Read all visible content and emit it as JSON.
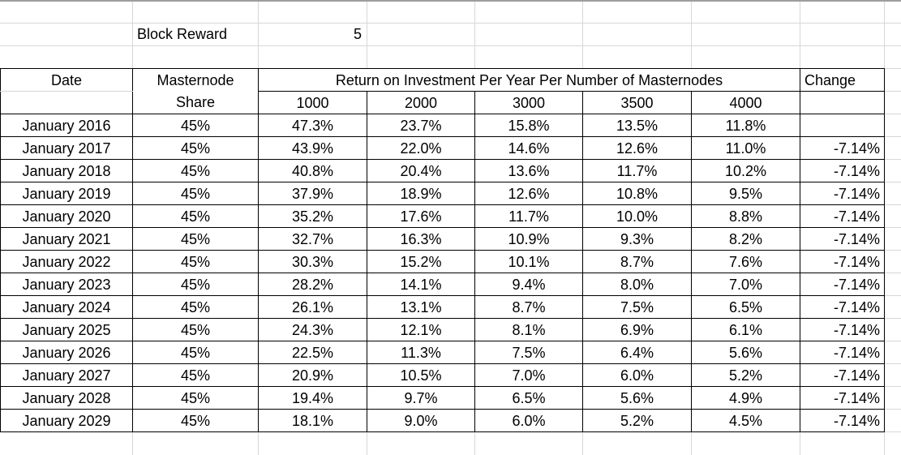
{
  "block_reward": {
    "label": "Block Reward",
    "value": "5"
  },
  "table": {
    "headers": {
      "date": "Date",
      "masternode": "Masternode",
      "masternode_sub": "Share",
      "roi_group": "Return on Investment Per Year Per Number of Masternodes",
      "node_counts": [
        "1000",
        "2000",
        "3000",
        "3500",
        "4000"
      ],
      "change": "Change"
    },
    "rows": [
      {
        "date": "January 2016",
        "share": "45%",
        "roi": [
          "47.3%",
          "23.7%",
          "15.8%",
          "13.5%",
          "11.8%"
        ],
        "change": ""
      },
      {
        "date": "January 2017",
        "share": "45%",
        "roi": [
          "43.9%",
          "22.0%",
          "14.6%",
          "12.6%",
          "11.0%"
        ],
        "change": "-7.14%"
      },
      {
        "date": "January 2018",
        "share": "45%",
        "roi": [
          "40.8%",
          "20.4%",
          "13.6%",
          "11.7%",
          "10.2%"
        ],
        "change": "-7.14%"
      },
      {
        "date": "January 2019",
        "share": "45%",
        "roi": [
          "37.9%",
          "18.9%",
          "12.6%",
          "10.8%",
          "9.5%"
        ],
        "change": "-7.14%"
      },
      {
        "date": "January 2020",
        "share": "45%",
        "roi": [
          "35.2%",
          "17.6%",
          "11.7%",
          "10.0%",
          "8.8%"
        ],
        "change": "-7.14%"
      },
      {
        "date": "January 2021",
        "share": "45%",
        "roi": [
          "32.7%",
          "16.3%",
          "10.9%",
          "9.3%",
          "8.2%"
        ],
        "change": "-7.14%"
      },
      {
        "date": "January 2022",
        "share": "45%",
        "roi": [
          "30.3%",
          "15.2%",
          "10.1%",
          "8.7%",
          "7.6%"
        ],
        "change": "-7.14%"
      },
      {
        "date": "January 2023",
        "share": "45%",
        "roi": [
          "28.2%",
          "14.1%",
          "9.4%",
          "8.0%",
          "7.0%"
        ],
        "change": "-7.14%"
      },
      {
        "date": "January 2024",
        "share": "45%",
        "roi": [
          "26.1%",
          "13.1%",
          "8.7%",
          "7.5%",
          "6.5%"
        ],
        "change": "-7.14%"
      },
      {
        "date": "January 2025",
        "share": "45%",
        "roi": [
          "24.3%",
          "12.1%",
          "8.1%",
          "6.9%",
          "6.1%"
        ],
        "change": "-7.14%"
      },
      {
        "date": "January 2026",
        "share": "45%",
        "roi": [
          "22.5%",
          "11.3%",
          "7.5%",
          "6.4%",
          "5.6%"
        ],
        "change": "-7.14%"
      },
      {
        "date": "January 2027",
        "share": "45%",
        "roi": [
          "20.9%",
          "10.5%",
          "7.0%",
          "6.0%",
          "5.2%"
        ],
        "change": "-7.14%"
      },
      {
        "date": "January 2028",
        "share": "45%",
        "roi": [
          "19.4%",
          "9.7%",
          "6.5%",
          "5.6%",
          "4.9%"
        ],
        "change": "-7.14%"
      },
      {
        "date": "January 2029",
        "share": "45%",
        "roi": [
          "18.1%",
          "9.0%",
          "6.0%",
          "5.2%",
          "4.5%"
        ],
        "change": "-7.14%"
      }
    ]
  },
  "colors": {
    "cell_border": "#000000",
    "gridline": "#d7d7d7",
    "top_divider": "#9e9e9e",
    "text": "#000000",
    "background": "#ffffff"
  }
}
